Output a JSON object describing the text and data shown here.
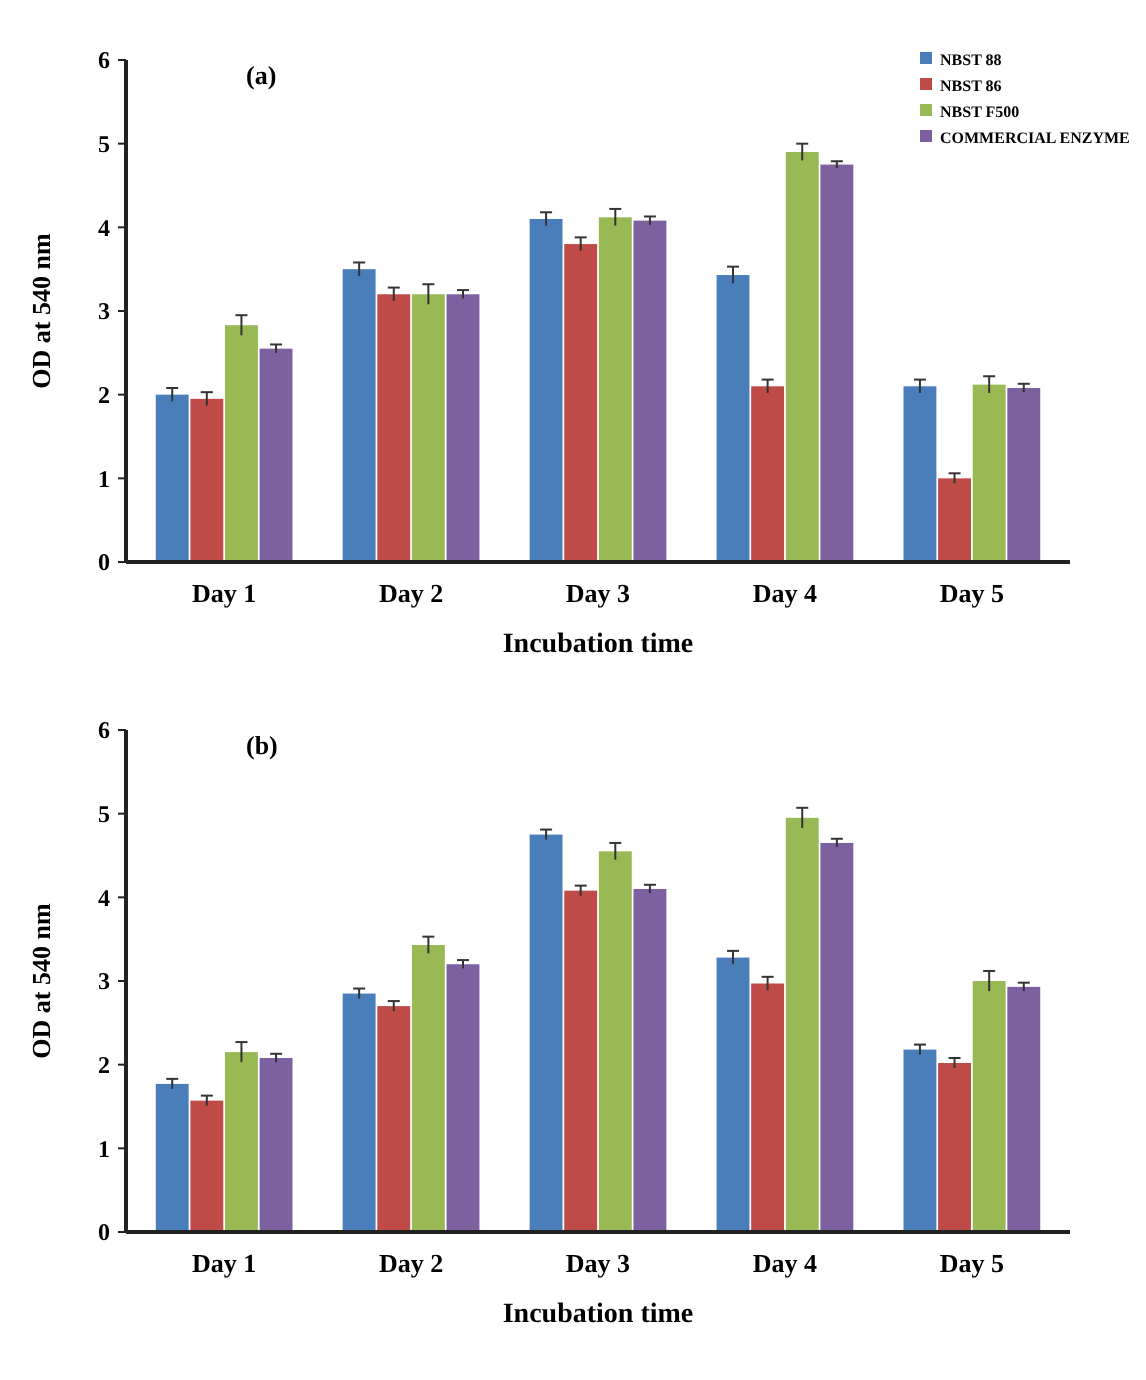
{
  "chart_data": [
    {
      "type": "bar",
      "title": "(a)",
      "xlabel": "Incubation time",
      "ylabel": "OD at 540 nm",
      "categories": [
        "Day 1",
        "Day 2",
        "Day 3",
        "Day 4",
        "Day 5"
      ],
      "ylim": [
        0,
        6
      ],
      "yticks": [
        0,
        1,
        2,
        3,
        4,
        5,
        6
      ],
      "grid": false,
      "legend": "top right",
      "series": [
        {
          "name": "NBST 88",
          "color": "#4a7ebb",
          "values": [
            2.0,
            3.5,
            4.1,
            3.43,
            2.1
          ],
          "errors": [
            0.08,
            0.08,
            0.08,
            0.1,
            0.08
          ]
        },
        {
          "name": "NBST 86",
          "color": "#be4b48",
          "values": [
            1.95,
            3.2,
            3.8,
            2.1,
            1.0
          ],
          "errors": [
            0.08,
            0.08,
            0.08,
            0.08,
            0.06
          ]
        },
        {
          "name": "NBST F500",
          "color": "#98b954",
          "values": [
            2.83,
            3.2,
            4.12,
            4.9,
            2.12
          ],
          "errors": [
            0.12,
            0.12,
            0.1,
            0.1,
            0.1
          ]
        },
        {
          "name": "COMMERCIAL ENZYME",
          "color": "#7d60a0",
          "values": [
            2.55,
            3.2,
            4.08,
            4.75,
            2.08
          ],
          "errors": [
            0.05,
            0.05,
            0.05,
            0.04,
            0.05
          ]
        }
      ]
    },
    {
      "type": "bar",
      "title": "(b)",
      "xlabel": "Incubation time",
      "ylabel": "OD at 540 nm",
      "categories": [
        "Day 1",
        "Day 2",
        "Day 3",
        "Day 4",
        "Day 5"
      ],
      "ylim": [
        0,
        6
      ],
      "yticks": [
        0,
        1,
        2,
        3,
        4,
        5,
        6
      ],
      "grid": false,
      "legend": false,
      "series": [
        {
          "color": "#4a7ebb",
          "values": [
            1.77,
            2.85,
            4.75,
            3.28,
            2.18
          ],
          "errors": [
            0.06,
            0.06,
            0.06,
            0.08,
            0.06
          ]
        },
        {
          "color": "#be4b48",
          "values": [
            1.57,
            2.7,
            4.08,
            2.97,
            2.02
          ],
          "errors": [
            0.06,
            0.06,
            0.06,
            0.08,
            0.06
          ]
        },
        {
          "color": "#98b954",
          "values": [
            2.15,
            3.43,
            4.55,
            4.95,
            3.0
          ],
          "errors": [
            0.12,
            0.1,
            0.1,
            0.12,
            0.12
          ]
        },
        {
          "color": "#7d60a0",
          "values": [
            2.08,
            3.2,
            4.1,
            4.65,
            2.93
          ],
          "errors": [
            0.05,
            0.05,
            0.05,
            0.05,
            0.05
          ]
        }
      ]
    }
  ]
}
